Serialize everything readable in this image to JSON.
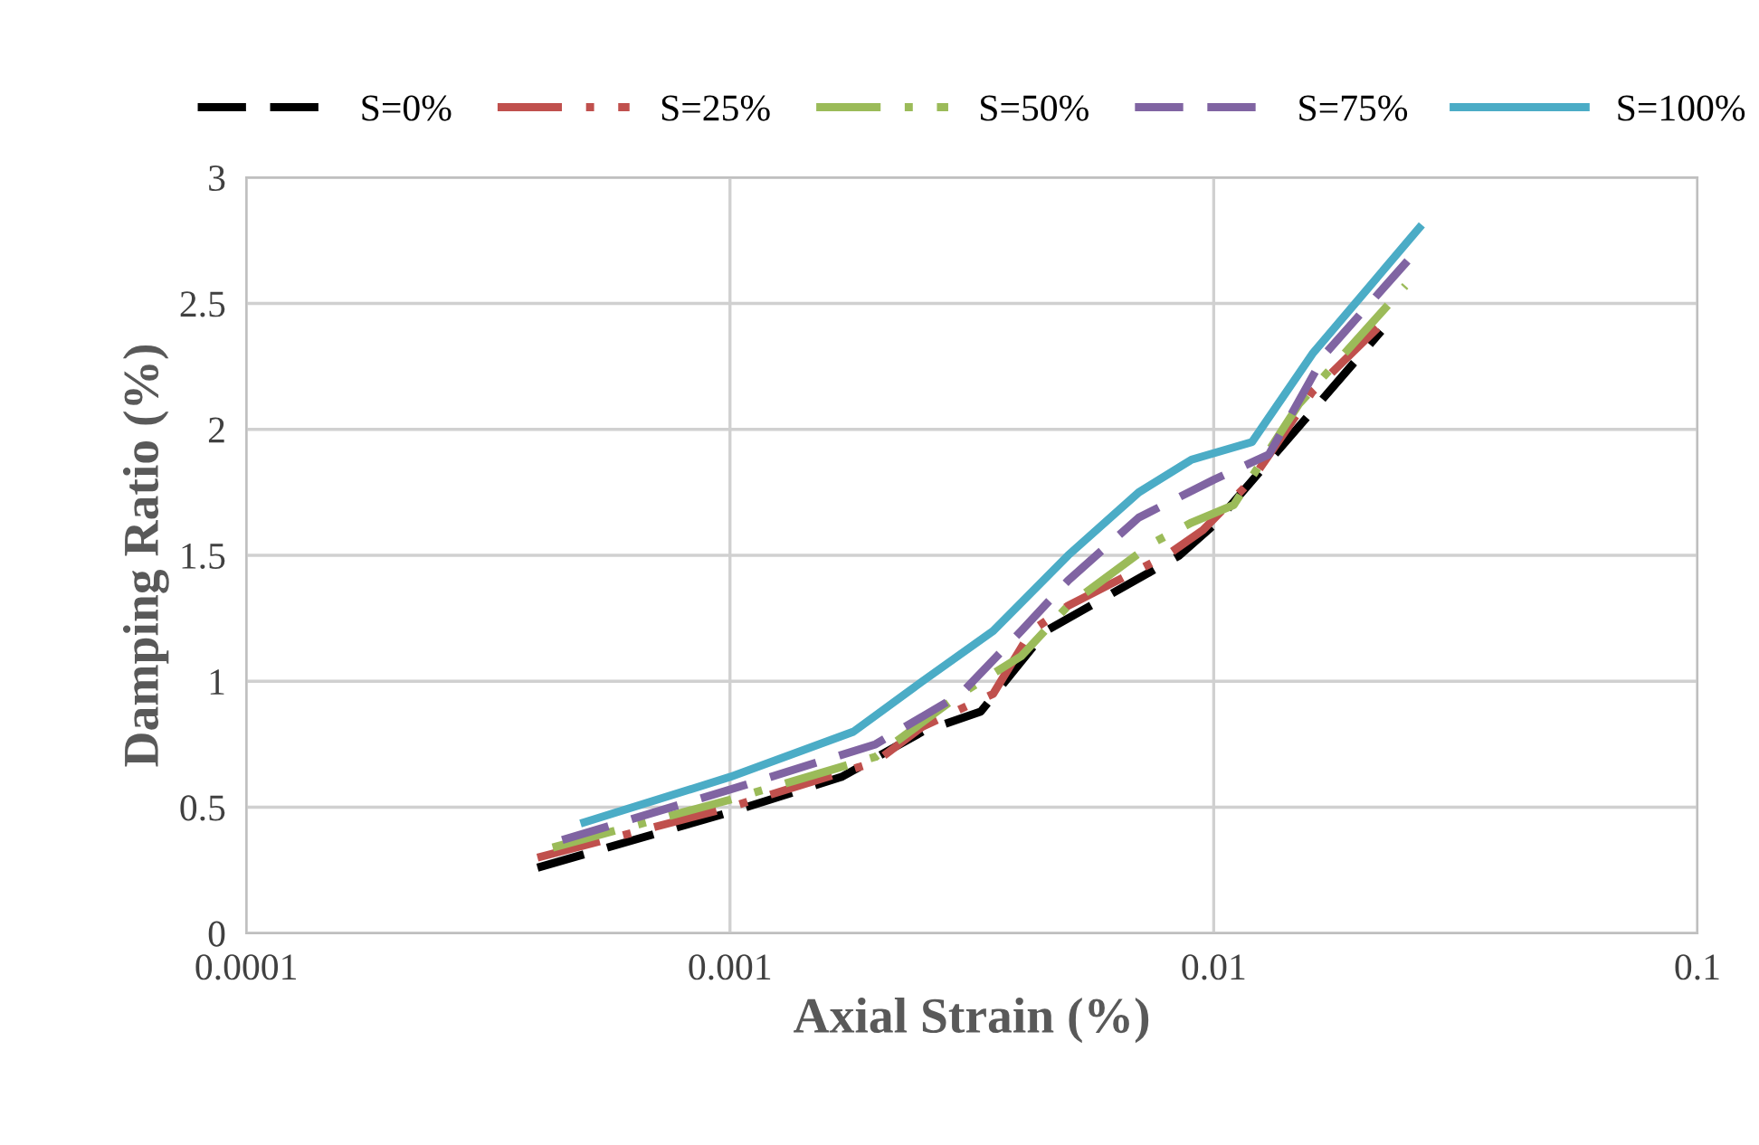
{
  "chart_data": {
    "type": "line",
    "xlabel": "Axial Strain (%)",
    "ylabel": "Damping Ratio (%)",
    "log": "x",
    "xlim": [
      0.0001,
      0.1
    ],
    "xticks": [
      {
        "value": 0.0001,
        "label": "0.0001"
      },
      {
        "value": 0.001,
        "label": "0.001"
      },
      {
        "value": 0.01,
        "label": "0.01"
      },
      {
        "value": 0.1,
        "label": "0.1"
      }
    ],
    "ylim": [
      0,
      3
    ],
    "yticks": [
      0,
      0.5,
      1,
      1.5,
      2,
      2.5,
      3
    ],
    "grid": true,
    "legend": "top",
    "marker": "none",
    "series": [
      {
        "name": "S=0%",
        "color": "#000000",
        "line_style": "dashed",
        "x": [
          0.0004,
          0.001,
          0.0017,
          0.0025,
          0.0033,
          0.0045,
          0.0085,
          0.01,
          0.0222
        ],
        "values": [
          0.26,
          0.48,
          0.62,
          0.8,
          0.88,
          1.2,
          1.5,
          1.62,
          2.39
        ]
      },
      {
        "name": "S=25%",
        "color": "#c0504d",
        "line_style": "dashdot",
        "x": [
          0.0004,
          0.001,
          0.002,
          0.0025,
          0.0035,
          0.0042,
          0.005,
          0.008,
          0.0095,
          0.012,
          0.016,
          0.022
        ],
        "values": [
          0.3,
          0.5,
          0.68,
          0.82,
          0.95,
          1.2,
          1.3,
          1.5,
          1.6,
          1.8,
          2.15,
          2.41
        ]
      },
      {
        "name": "S=50%",
        "color": "#9bbb59",
        "line_style": "dashdot",
        "x": [
          0.00043,
          0.001,
          0.002,
          0.003,
          0.004,
          0.005,
          0.0075,
          0.009,
          0.011,
          0.015,
          0.0249
        ],
        "values": [
          0.34,
          0.53,
          0.7,
          0.95,
          1.1,
          1.3,
          1.55,
          1.63,
          1.7,
          2.1,
          2.57
        ]
      },
      {
        "name": "S=75%",
        "color": "#8064a2",
        "line_style": "dashed",
        "x": [
          0.00045,
          0.001,
          0.002,
          0.003,
          0.004,
          0.005,
          0.007,
          0.01,
          0.013,
          0.017,
          0.026
        ],
        "values": [
          0.37,
          0.57,
          0.75,
          0.95,
          1.2,
          1.4,
          1.65,
          1.8,
          1.9,
          2.3,
          2.7
        ]
      },
      {
        "name": "S=100%",
        "color": "#4bacc6",
        "line_style": "solid",
        "x": [
          0.0005,
          0.001,
          0.0018,
          0.0025,
          0.0035,
          0.005,
          0.007,
          0.009,
          0.012,
          0.016,
          0.0266
        ],
        "values": [
          0.44,
          0.62,
          0.8,
          1.0,
          1.2,
          1.5,
          1.75,
          1.88,
          1.95,
          2.3,
          2.8
        ]
      }
    ]
  }
}
